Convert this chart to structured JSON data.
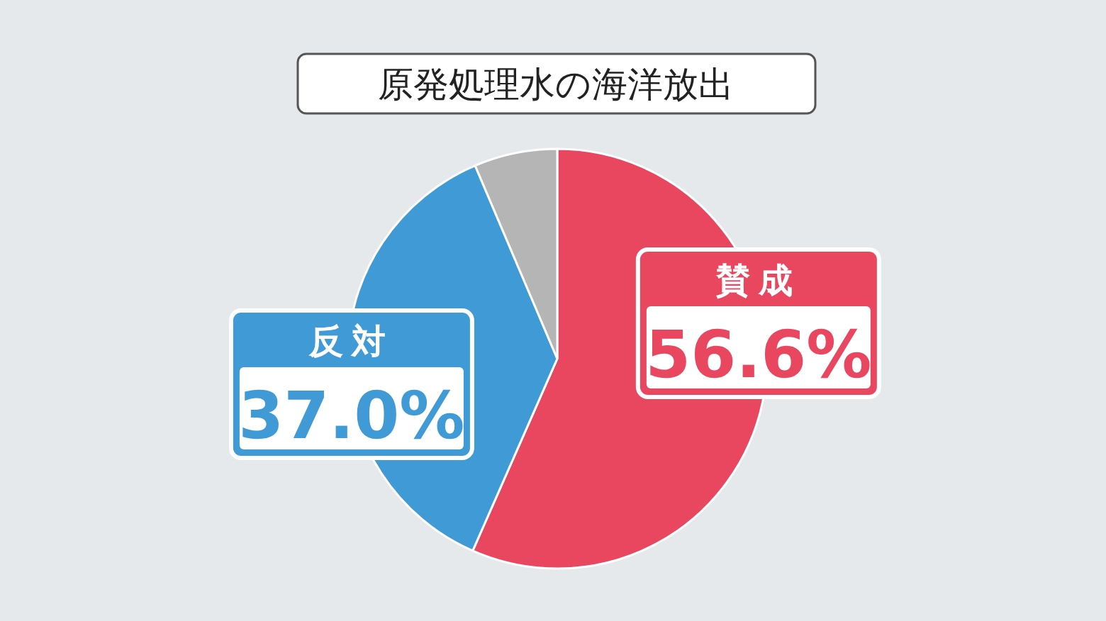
{
  "chart_data": {
    "type": "pie",
    "title": "原発処理水の海洋放出",
    "categories": [
      "賛成",
      "反対",
      null
    ],
    "values": [
      56.6,
      37.0,
      6.4
    ],
    "colors": [
      "#e8475f",
      "#3f9ad6",
      "#b5b5b5"
    ],
    "value_labels": [
      "56.6%",
      "37.0%",
      null
    ]
  }
}
